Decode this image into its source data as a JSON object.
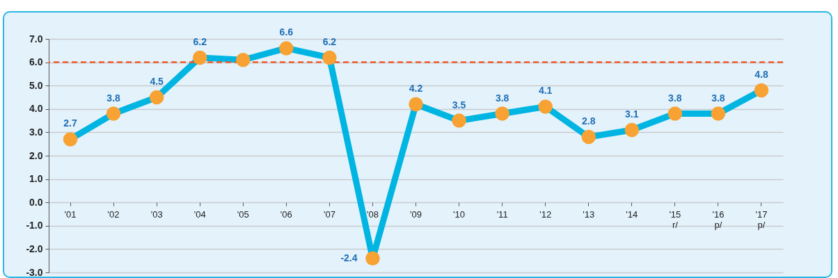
{
  "chart_data": {
    "type": "line",
    "categories": [
      "'01",
      "'02",
      "'03",
      "'04",
      "'05",
      "'06",
      "'07",
      "'08",
      "'09",
      "'10",
      "'11",
      "'12",
      "'13",
      "'14",
      "'15\nr/",
      "'16\np/",
      "'17\np/"
    ],
    "series": [
      {
        "color": "#00b5e2",
        "values": [
          2.7,
          3.8,
          4.5,
          6.2,
          6.1,
          6.6,
          6.2,
          -2.4,
          4.2,
          3.5,
          3.8,
          4.1,
          2.8,
          3.1,
          3.8,
          3.8,
          4.8
        ],
        "value_labels": [
          "2.7",
          "3.8",
          "4.5",
          "6.2",
          null,
          "6.6",
          "6.2",
          "-2.4",
          "4.2",
          "3.5",
          "3.8",
          "4.1",
          "2.8",
          "3.1",
          "3.8",
          "3.8",
          "4.8"
        ]
      }
    ],
    "ylim": [
      -3,
      7
    ],
    "yticks": [
      {
        "value": -3,
        "label": "-3.0"
      },
      {
        "value": -2,
        "label": "-2.0"
      },
      {
        "value": -1,
        "label": "-1.0"
      },
      {
        "value": 0,
        "label": "0.0"
      },
      {
        "value": 1,
        "label": "1.0"
      },
      {
        "value": 2,
        "label": "2.0"
      },
      {
        "value": 3,
        "label": "3.0"
      },
      {
        "value": 4,
        "label": "4.0"
      },
      {
        "value": 5,
        "label": "5.0"
      },
      {
        "value": 6,
        "label": "6.0"
      },
      {
        "value": 7,
        "label": "7.0"
      }
    ],
    "grid": "y",
    "marker": "circle",
    "line_style": "solid",
    "ref_lines": [
      {
        "axis": "y",
        "value": 6,
        "color": "#f05a28",
        "line_style": "dashed"
      }
    ]
  }
}
